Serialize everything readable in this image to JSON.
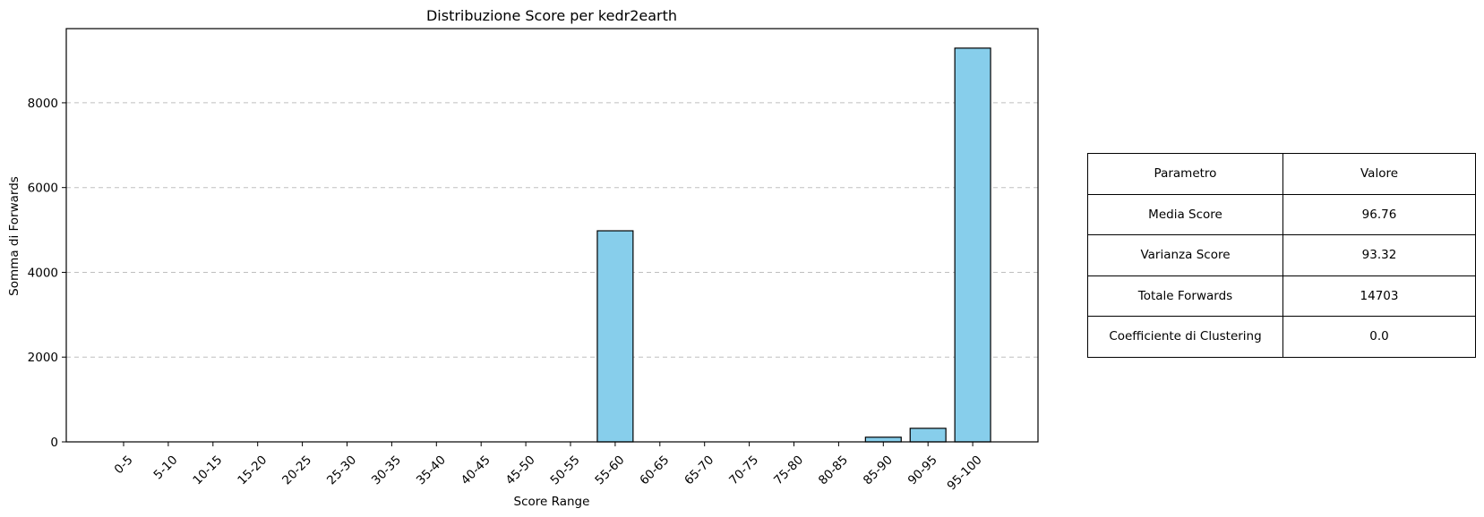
{
  "chart_data": {
    "type": "bar",
    "title": "Distribuzione Score per kedr2earth",
    "xlabel": "Score Range",
    "ylabel": "Somma di Forwards",
    "categories": [
      "0-5",
      "5-10",
      "10-15",
      "15-20",
      "20-25",
      "25-30",
      "30-35",
      "35-40",
      "40-45",
      "45-50",
      "50-55",
      "55-60",
      "60-65",
      "65-70",
      "70-75",
      "75-80",
      "80-85",
      "85-90",
      "90-95",
      "95-100"
    ],
    "values": [
      0,
      0,
      0,
      0,
      0,
      0,
      0,
      0,
      0,
      0,
      0,
      4980,
      0,
      0,
      0,
      0,
      0,
      110,
      320,
      9290
    ],
    "ylim": [
      0,
      9750
    ],
    "yticks": [
      0,
      2000,
      4000,
      6000,
      8000
    ],
    "grid": "y, dashed",
    "bar_color": "#87CEEB",
    "edge_color": "#000000"
  },
  "table": {
    "header": [
      "Parametro",
      "Valore"
    ],
    "rows": [
      [
        "Media Score",
        "96.76"
      ],
      [
        "Varianza Score",
        "93.32"
      ],
      [
        "Totale Forwards",
        "14703"
      ],
      [
        "Coefficiente di Clustering",
        "0.0"
      ]
    ]
  }
}
